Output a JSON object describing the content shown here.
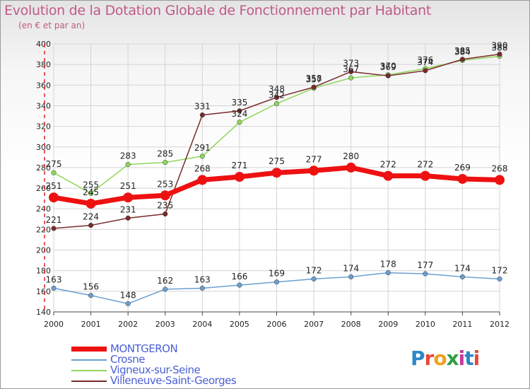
{
  "title": "Evolution de la Dotation Globale de Fonctionnement par Habitant",
  "subtitle": "(en € et par an)",
  "logo": {
    "text": "Proxiti",
    "colors": [
      "#2f86c8",
      "#e8473a",
      "#f0a020",
      "#2f9e44",
      "#c53b9b",
      "#2f86c8",
      "#e8473a"
    ]
  },
  "chart_data": {
    "type": "line",
    "x": [
      "2000",
      "2001",
      "2002",
      "2003",
      "2004",
      "2005",
      "2006",
      "2007",
      "2008",
      "2009",
      "2010",
      "2011",
      "2012"
    ],
    "ylim": [
      140,
      400
    ],
    "yticks": [
      140,
      160,
      180,
      200,
      220,
      240,
      260,
      280,
      300,
      320,
      340,
      360,
      380,
      400
    ],
    "grid": true,
    "legend_position": "bottom-left",
    "series": [
      {
        "name": "MONTGERON",
        "color": "#ee1111",
        "values": [
          251,
          245,
          251,
          253,
          268,
          271,
          275,
          277,
          280,
          272,
          272,
          269,
          268
        ],
        "labels": [
          "251",
          "245",
          "251",
          "253",
          "268",
          "271",
          "275",
          "277",
          "280",
          "272",
          "272",
          "269",
          "268"
        ]
      },
      {
        "name": "Crosne",
        "color": "#6a9fd0",
        "values": [
          163,
          156,
          148,
          162,
          163,
          166,
          169,
          172,
          174,
          178,
          177,
          174,
          172
        ],
        "labels": [
          "163",
          "156",
          "148",
          "162",
          "163",
          "166",
          "169",
          "172",
          "174",
          "178",
          "177",
          "174",
          "172"
        ]
      },
      {
        "name": "Vigneux-sur-Seine",
        "color": "#8fd65a",
        "values": [
          275,
          255,
          283,
          285,
          291,
          324,
          342,
          357,
          367,
          370,
          376,
          384,
          388
        ],
        "labels": [
          "275",
          "255",
          "283",
          "285",
          "291",
          "324",
          "342",
          "357",
          "367",
          "370",
          "376",
          "384",
          "388"
        ]
      },
      {
        "name": "Villeneuve-Saint-Georges",
        "color": "#7a2a2a",
        "values": [
          221,
          224,
          231,
          235,
          331,
          335,
          348,
          358,
          373,
          369,
          374,
          385,
          390
        ],
        "labels": [
          "221",
          "224",
          "231",
          "235",
          "331",
          "335",
          "348",
          "358",
          "373",
          "369",
          "374",
          "385",
          "390"
        ]
      }
    ]
  }
}
